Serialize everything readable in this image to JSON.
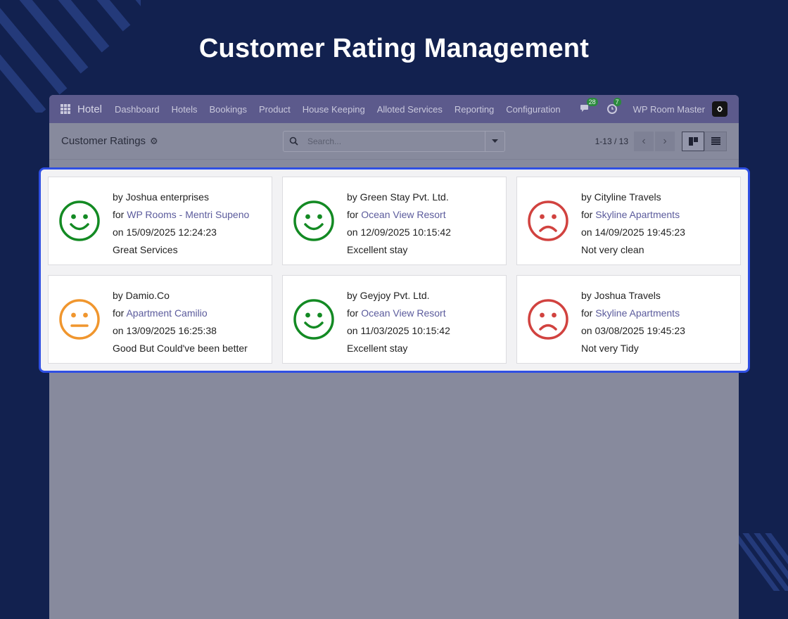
{
  "banner": {
    "title": "Customer Rating Management"
  },
  "navbar": {
    "brand": "Hotel",
    "menu": [
      "Dashboard",
      "Hotels",
      "Bookings",
      "Product",
      "House Keeping",
      "Alloted Services",
      "Reporting",
      "Configuration"
    ],
    "messages_count": "28",
    "activities_count": "7",
    "company": "WP Room Master"
  },
  "control_panel": {
    "breadcrumb": "Customer Ratings",
    "search_placeholder": "Search...",
    "pager": "1-13 / 13"
  },
  "ratings": [
    {
      "by": "by Joshua enterprises",
      "for_prefix": "for ",
      "for_link": "WP Rooms - Mentri Supeno",
      "date": "on 15/09/2025 12:24:23",
      "comment": "Great Services",
      "mood": "happy",
      "color": "#138a23"
    },
    {
      "by": "by Green Stay Pvt. Ltd.",
      "for_prefix": "for ",
      "for_link": "Ocean View Resort",
      "date": "on 12/09/2025 10:15:42",
      "comment": "Excellent stay",
      "mood": "happy",
      "color": "#138a23"
    },
    {
      "by": "by Cityline Travels",
      "for_prefix": "for ",
      "for_link": "Skyline Apartments",
      "date": "on 14/09/2025 19:45:23",
      "comment": "Not very clean",
      "mood": "sad",
      "color": "#d1423f"
    },
    {
      "by": "by Damio.Co",
      "for_prefix": "for ",
      "for_link": "Apartment Camilio",
      "date": "on 13/09/2025 16:25:38",
      "comment": "Good But Could've been better",
      "mood": "neutral",
      "color": "#f0962e"
    },
    {
      "by": "by Geyjoy Pvt. Ltd.",
      "for_prefix": "for ",
      "for_link": "Ocean View Resort",
      "date": "on 11/03/2025 10:15:42",
      "comment": "Excellent stay",
      "mood": "happy",
      "color": "#138a23"
    },
    {
      "by": "by Joshua Travels",
      "for_prefix": "for ",
      "for_link": "Skyline Apartments",
      "date": "on 03/08/2025 19:45:23",
      "comment": "Not very Tidy",
      "mood": "sad",
      "color": "#d1423f"
    }
  ]
}
